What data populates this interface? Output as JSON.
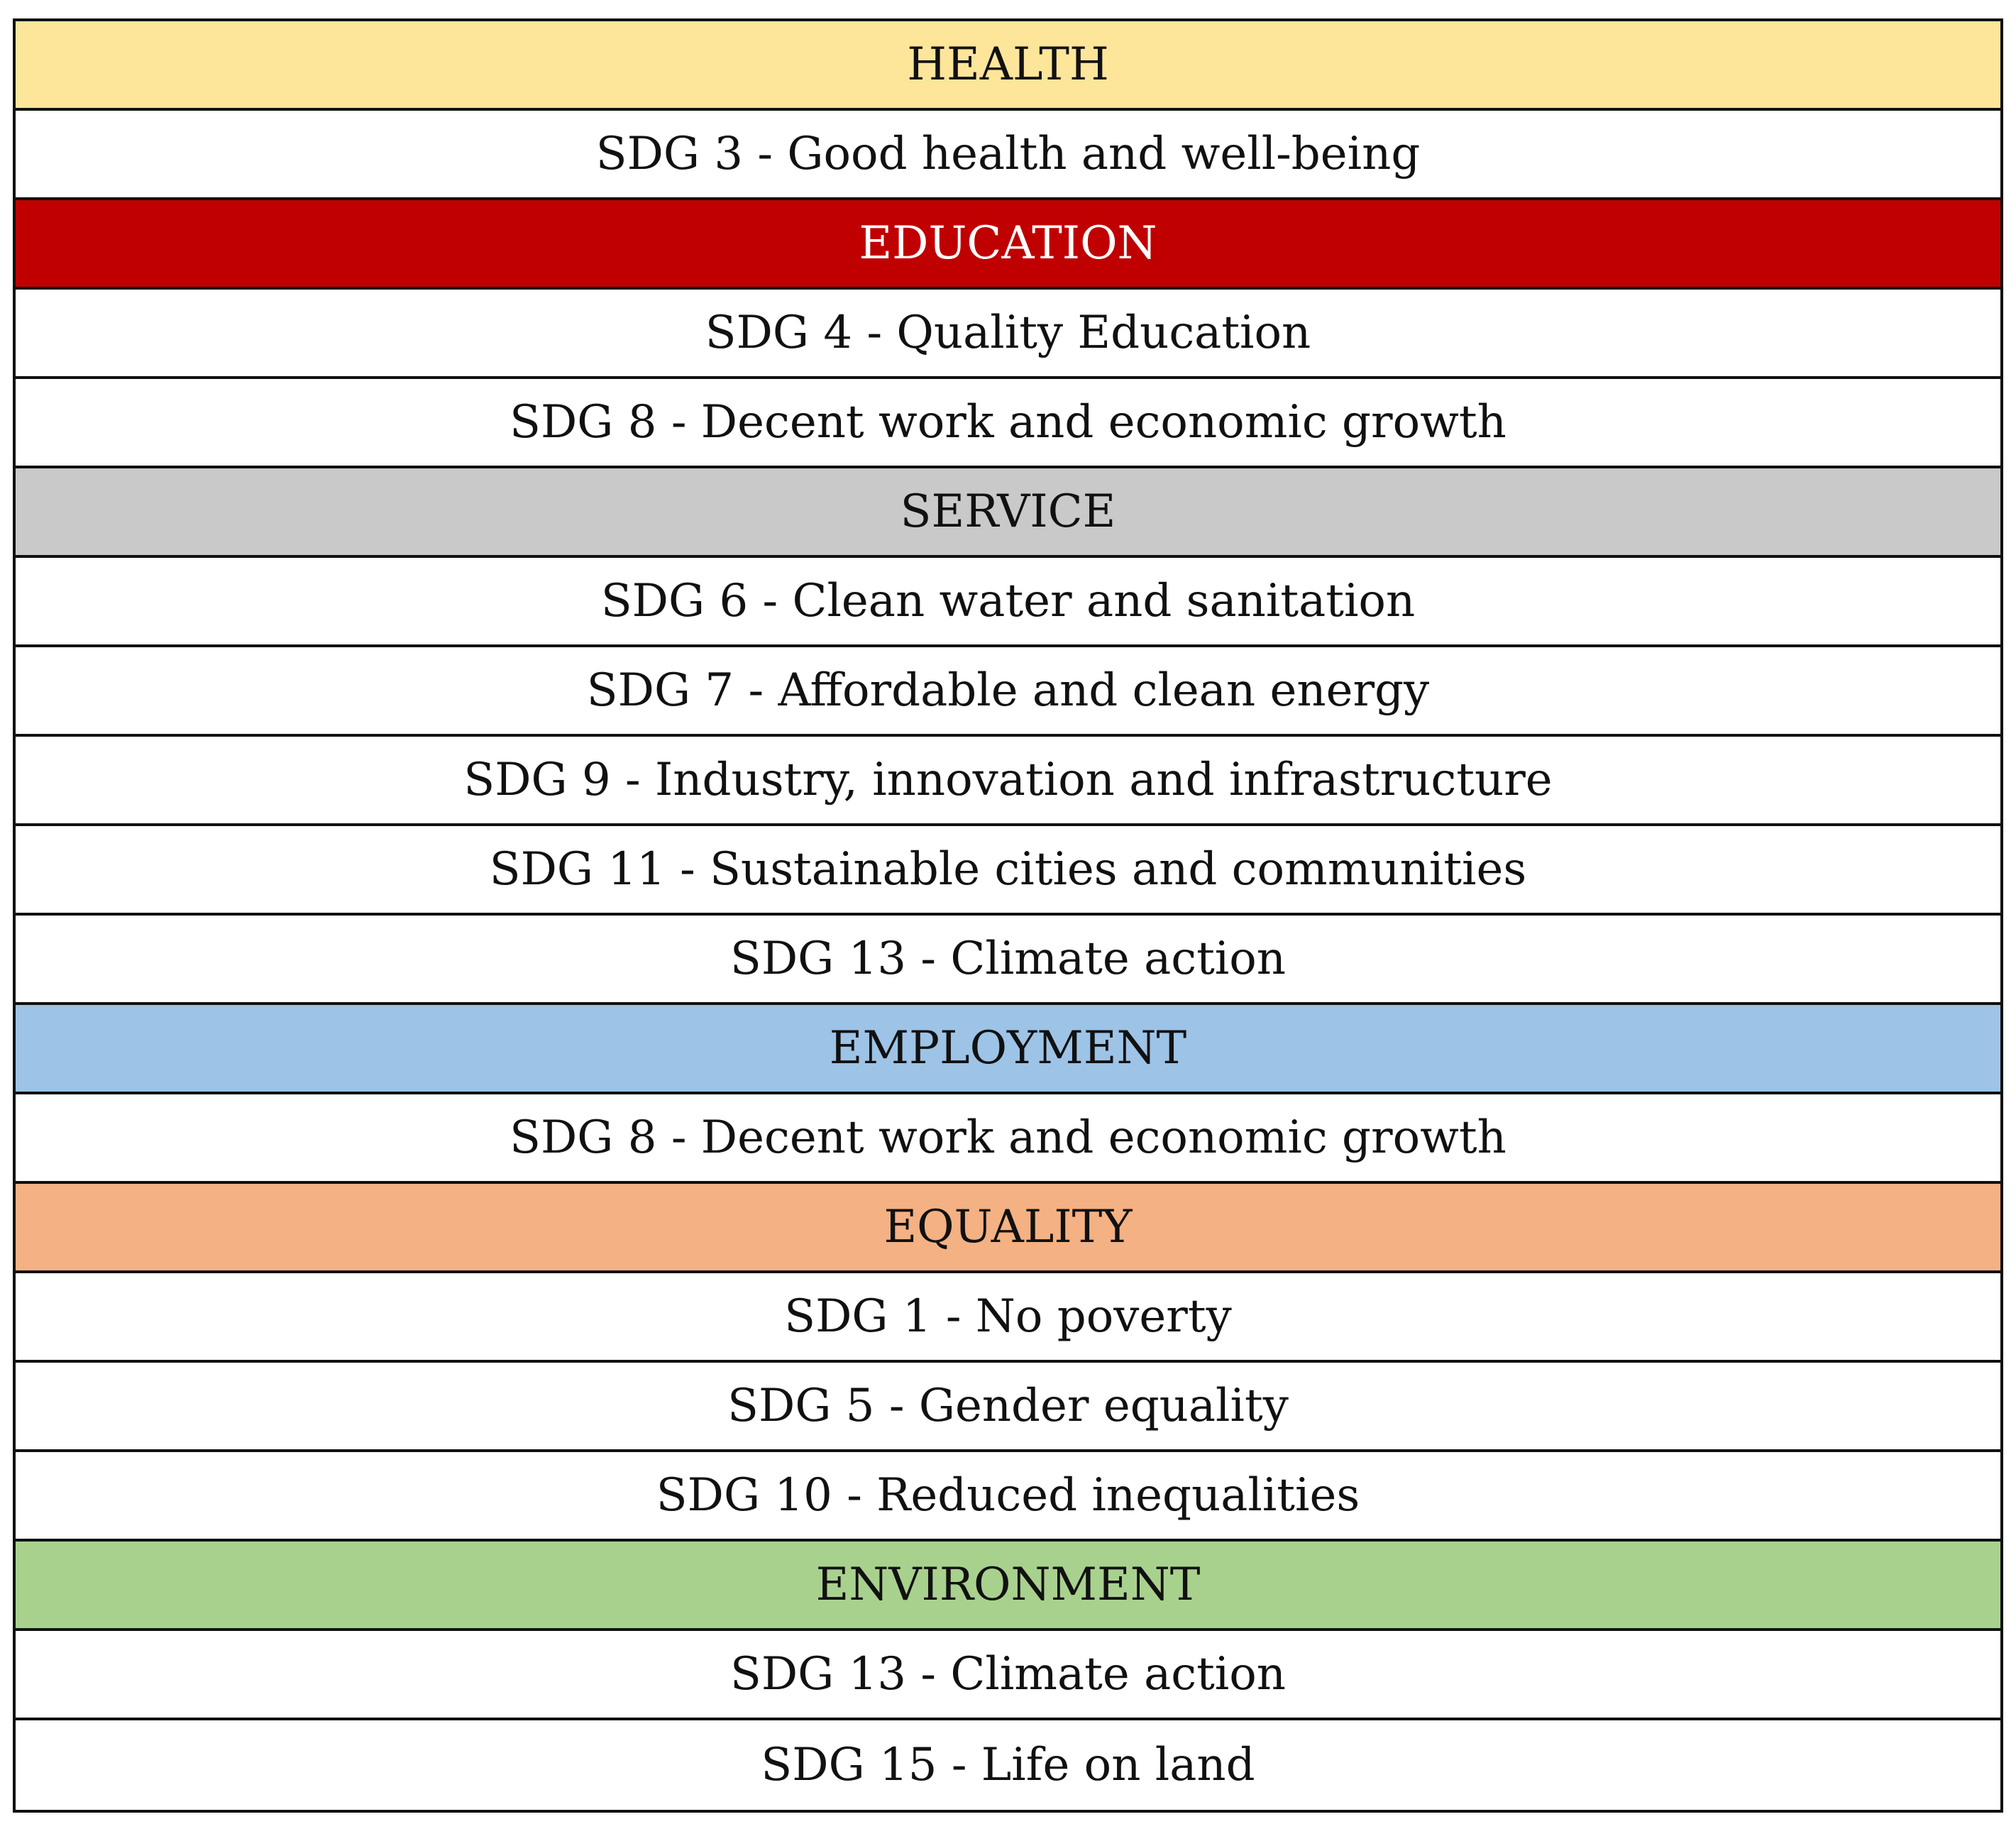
{
  "table": {
    "sections": [
      {
        "category": "HEALTH",
        "color": "#FDE59A",
        "text_color": "#111111",
        "goals": [
          "SDG 3 - Good health and well-being"
        ]
      },
      {
        "category": "EDUCATION",
        "color": "#C00000",
        "text_color": "#FFFFFF",
        "goals": [
          "SDG 4 - Quality Education",
          "SDG 8 - Decent work and economic growth"
        ]
      },
      {
        "category": "SERVICE",
        "color": "#C9C9C9",
        "text_color": "#111111",
        "goals": [
          "SDG 6 - Clean water and sanitation",
          "SDG 7 - Affordable and clean energy",
          "SDG 9 - Industry, innovation and infrastructure",
          "SDG 11 - Sustainable cities and communities",
          "SDG 13 - Climate action"
        ]
      },
      {
        "category": "EMPLOYMENT",
        "color": "#9DC3E6",
        "text_color": "#111111",
        "goals": [
          "SDG 8 - Decent work and economic growth"
        ]
      },
      {
        "category": "EQUALITY",
        "color": "#F4B183",
        "text_color": "#111111",
        "goals": [
          "SDG 1 - No poverty",
          "SDG 5 - Gender equality",
          "SDG 10 - Reduced inequalities"
        ]
      },
      {
        "category": "ENVIRONMENT",
        "color": "#A9D18E",
        "text_color": "#111111",
        "goals": [
          "SDG 13 - Climate action",
          "SDG 15 - Life on land"
        ]
      }
    ]
  }
}
